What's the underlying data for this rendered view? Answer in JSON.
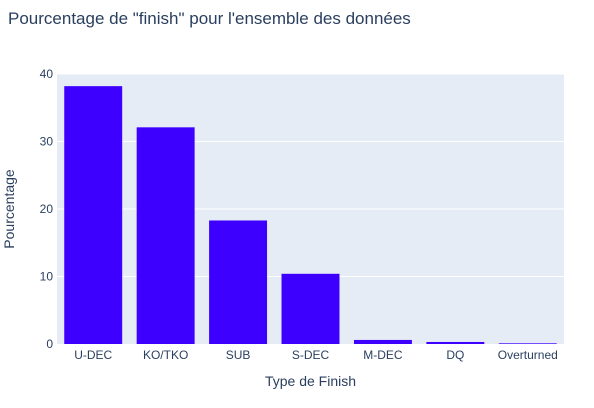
{
  "chart_data": {
    "type": "bar",
    "title": "Pourcentage de \"finish\" pour l'ensemble des données",
    "xlabel": "Type de Finish",
    "ylabel": "Pourcentage",
    "categories": [
      "U-DEC",
      "KO/TKO",
      "SUB",
      "S-DEC",
      "M-DEC",
      "DQ",
      "Overturned"
    ],
    "values": [
      38.2,
      32.1,
      18.3,
      10.4,
      0.6,
      0.3,
      0.1
    ],
    "ylim": [
      0,
      40
    ],
    "yticks": [
      0,
      10,
      20,
      30,
      40
    ],
    "grid": true,
    "legend": "none"
  },
  "colors": {
    "bar": "#3d00ff",
    "plot_bg": "#e5ecf6",
    "grid": "#ffffff",
    "text": "#2a3f5f"
  }
}
